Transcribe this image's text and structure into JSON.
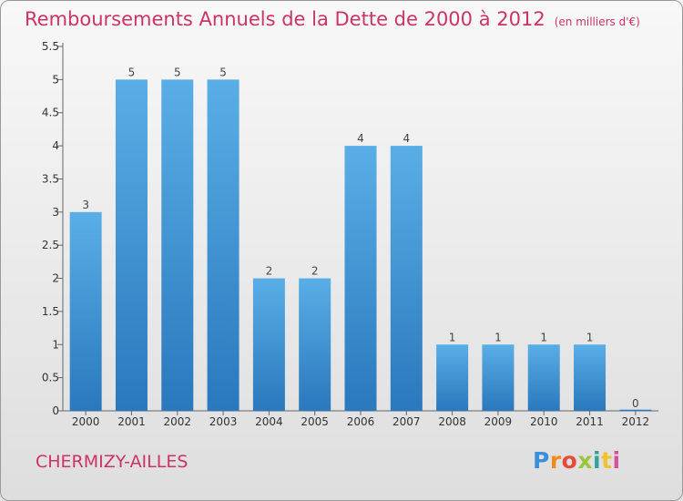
{
  "header": {
    "title": "Remboursements Annuels de la Dette de 2000 à 2012",
    "unit_note": "(en milliers d'€)"
  },
  "footer": {
    "town": "CHERMIZY-AILLES",
    "logo_text": "Proxiti"
  },
  "chart_data": {
    "type": "bar",
    "title": "Remboursements Annuels de la Dette de 2000 à 2012",
    "subtitle": "(en milliers d'€)",
    "xlabel": "",
    "ylabel": "",
    "categories": [
      "2000",
      "2001",
      "2002",
      "2003",
      "2004",
      "2005",
      "2006",
      "2007",
      "2008",
      "2009",
      "2010",
      "2011",
      "2012"
    ],
    "values": [
      3,
      5,
      5,
      5,
      2,
      2,
      4,
      4,
      1,
      1,
      1,
      1,
      0
    ],
    "data_labels": [
      "3",
      "5",
      "5",
      "5",
      "2",
      "2",
      "4",
      "4",
      "1",
      "1",
      "1",
      "1",
      "0"
    ],
    "ylim": [
      0,
      5.5
    ],
    "yticks": [
      0,
      0.5,
      1,
      1.5,
      2,
      2.5,
      3,
      3.5,
      4,
      4.5,
      5,
      5.5
    ],
    "ytick_labels": [
      "0",
      "0.5",
      "1",
      "1.5",
      "2",
      "2.5",
      "3",
      "3.5",
      "4",
      "4.5",
      "5",
      "5.5"
    ],
    "grid": false,
    "legend": "none",
    "colors": {
      "bar_light": "#5aaee6",
      "bar_dark": "#2a78bd",
      "title": "#cc3366"
    }
  }
}
